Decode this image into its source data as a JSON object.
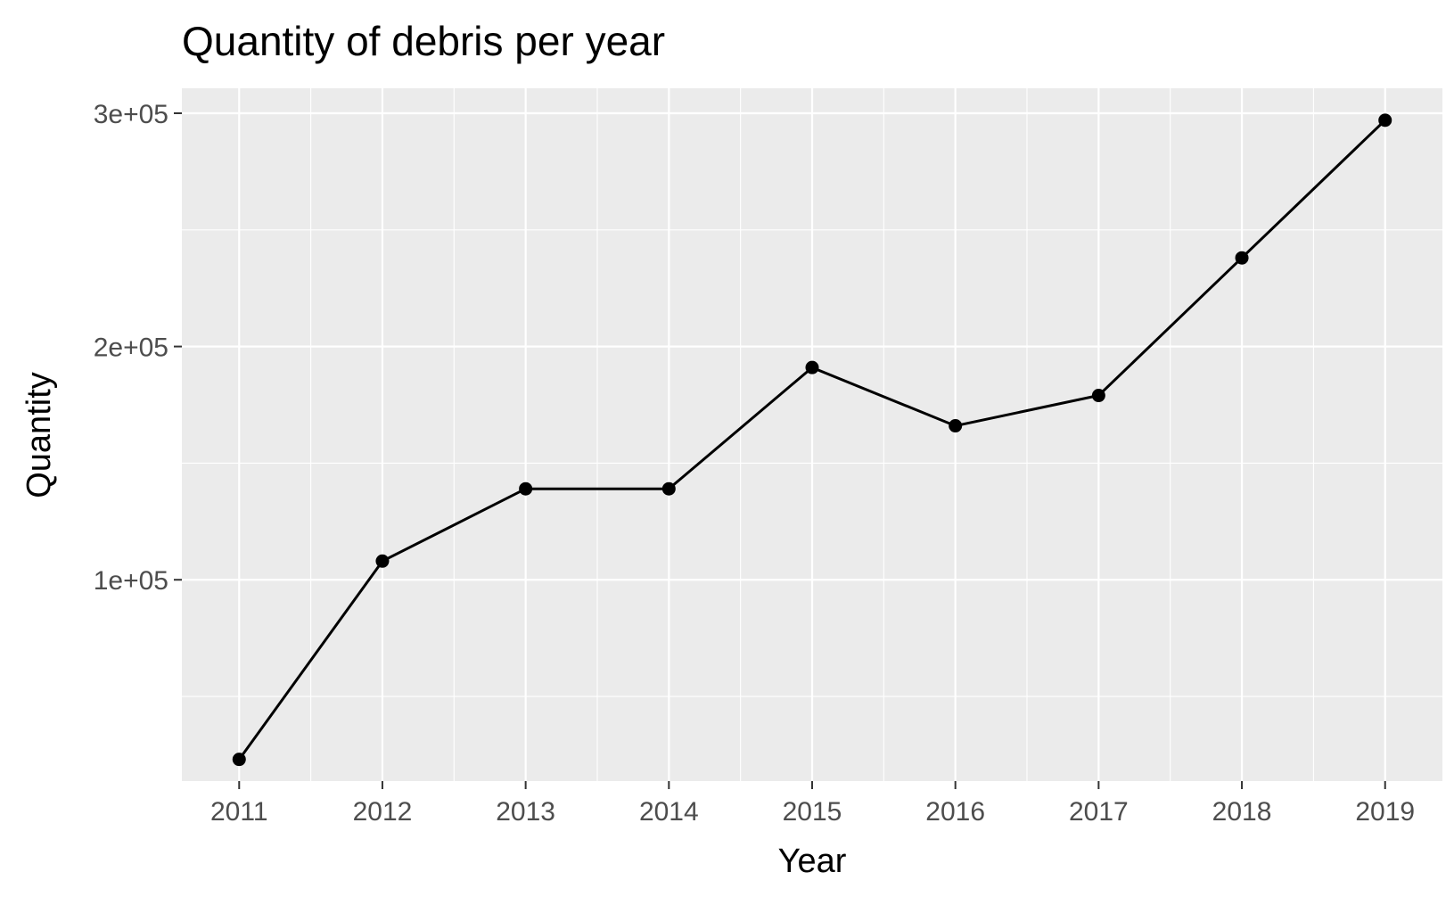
{
  "chart_data": {
    "type": "line",
    "title": "Quantity of debris per year",
    "xlabel": "Year",
    "ylabel": "Quantity",
    "x": [
      2011,
      2012,
      2013,
      2014,
      2015,
      2016,
      2017,
      2018,
      2019
    ],
    "y": [
      23000,
      108000,
      139000,
      139000,
      191000,
      166000,
      179000,
      238000,
      297000
    ],
    "xlim": [
      2010.6,
      2019.4
    ],
    "ylim": [
      13700,
      310700
    ],
    "y_ticks": [
      100000,
      200000,
      300000
    ],
    "y_tick_labels": [
      "1e+05",
      "2e+05",
      "3e+05"
    ],
    "x_ticks": [
      2011,
      2012,
      2013,
      2014,
      2015,
      2016,
      2017,
      2018,
      2019
    ],
    "x_tick_labels": [
      "2011",
      "2012",
      "2013",
      "2014",
      "2015",
      "2016",
      "2017",
      "2018",
      "2019"
    ],
    "grid": true,
    "legend": "none",
    "colors": {
      "panel_background": "#ebebeb",
      "grid": "#ffffff",
      "line": "#000000",
      "points": "#000000",
      "tick_text": "#4d4d4d"
    }
  }
}
